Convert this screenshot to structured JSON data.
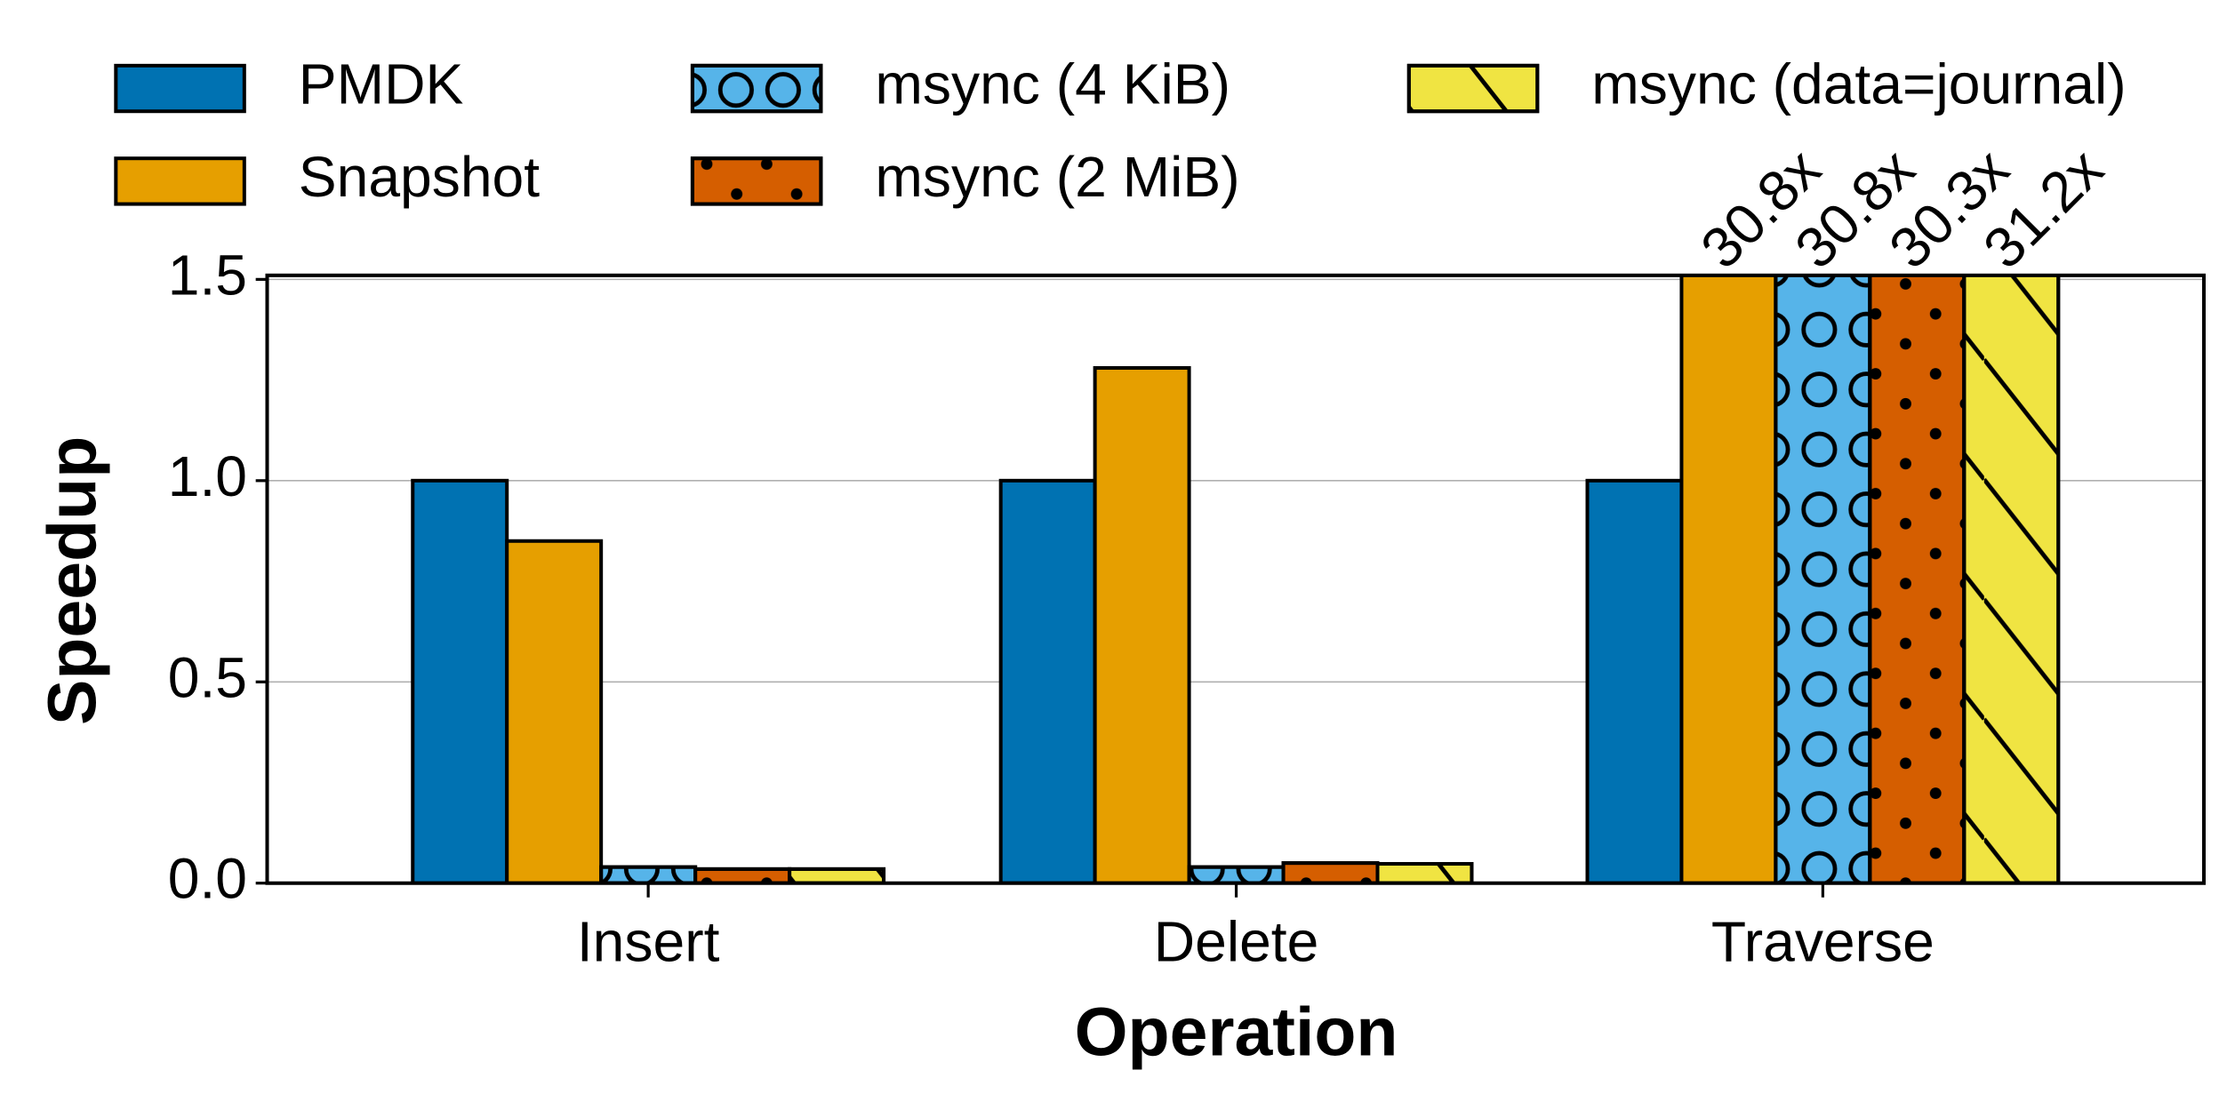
{
  "chart_data": {
    "type": "bar",
    "categories": [
      "Insert",
      "Delete",
      "Traverse"
    ],
    "series": [
      {
        "name": "PMDK",
        "color": "#0072b2",
        "pattern": "none",
        "values": [
          1.0,
          1.0,
          1.0
        ]
      },
      {
        "name": "Snapshot",
        "color": "#e69f00",
        "pattern": "none",
        "values": [
          0.85,
          1.28,
          30.8
        ],
        "value_labels": [
          null,
          null,
          "30.8x"
        ]
      },
      {
        "name": "msync (4 KiB)",
        "color": "#56b4e9",
        "pattern": "circles",
        "values": [
          0.04,
          0.04,
          30.8
        ],
        "value_labels": [
          null,
          null,
          "30.8x"
        ]
      },
      {
        "name": "msync (2 MiB)",
        "color": "#d55e00",
        "pattern": "dots",
        "values": [
          0.035,
          0.05,
          30.3
        ],
        "value_labels": [
          null,
          null,
          "30.3x"
        ]
      },
      {
        "name": "msync (data=journal)",
        "color": "#f0e442",
        "pattern": "diagonal",
        "values": [
          0.035,
          0.048,
          31.2
        ],
        "value_labels": [
          null,
          null,
          "31.2x"
        ]
      }
    ],
    "xlabel": "Operation",
    "ylabel": "Speedup",
    "ylim": [
      0,
      1.51
    ],
    "yticks": [
      {
        "value": 0,
        "label": "0.0"
      },
      0.5,
      {
        "value": 1,
        "label": "1.0"
      },
      1.5
    ],
    "grid": true,
    "legend": "top"
  }
}
